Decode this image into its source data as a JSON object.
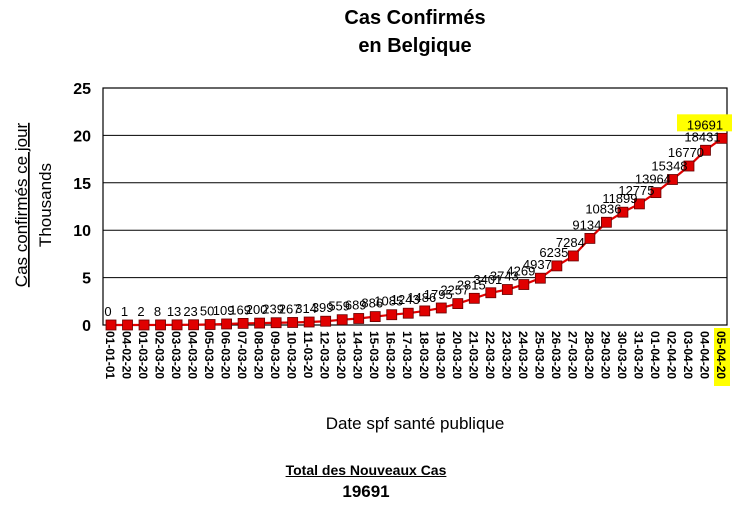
{
  "summary": {
    "label": "Total des Nouveaux Cas",
    "value": "19691"
  },
  "chart_data": {
    "type": "line",
    "title": [
      "Cas Confirmés",
      "en Belgique"
    ],
    "ylabel": [
      "Cas confirmés ce jour",
      "Thousands"
    ],
    "xlabel": "Date spf santé publique",
    "ylim": [
      0,
      25
    ],
    "yticks": [
      0,
      5,
      10,
      15,
      20,
      25
    ],
    "grid": true,
    "series_color": "#e00000",
    "highlight_color": "#ffff00",
    "categories": [
      "01-01-01",
      "04-02-20",
      "01-03-20",
      "02-03-20",
      "03-03-20",
      "04-03-20",
      "05-03-20",
      "06-03-20",
      "07-03-20",
      "08-03-20",
      "09-03-20",
      "10-03-20",
      "11-03-20",
      "12-03-20",
      "13-03-20",
      "14-03-20",
      "15-03-20",
      "16-03-20",
      "17-03-20",
      "18-03-20",
      "19-03-20",
      "20-03-20",
      "21-03-20",
      "22-03-20",
      "23-03-20",
      "24-03-20",
      "25-03-20",
      "26-03-20",
      "27-03-20",
      "28-03-20",
      "29-03-20",
      "30-03-20",
      "31-03-20",
      "01-04-20",
      "02-04-20",
      "03-04-20",
      "04-04-20",
      "05-04-20"
    ],
    "values": [
      0,
      1,
      2,
      8,
      13,
      23,
      50,
      109,
      169,
      200,
      239,
      267,
      314,
      399,
      559,
      689,
      886,
      1085,
      1243,
      1486,
      1795,
      2257,
      2815,
      3401,
      3743,
      4269,
      4937,
      6235,
      7284,
      9134,
      10836,
      11899,
      12775,
      13964,
      15348,
      16770,
      18431,
      19691
    ],
    "data_labels": [
      "0",
      "1",
      "2",
      "8",
      "13",
      "23",
      "50",
      "109",
      "169",
      "200",
      "239",
      "267",
      "314",
      "399",
      "559",
      "689",
      "886",
      "1085",
      "1243",
      "1486",
      "1795",
      "2257",
      "2815",
      "3401",
      "3743",
      "4269",
      "4937",
      "6235",
      "7284",
      "9134",
      "10836",
      "11899",
      "12775",
      "13964",
      "15348",
      "16770",
      "18431",
      "19691"
    ]
  }
}
